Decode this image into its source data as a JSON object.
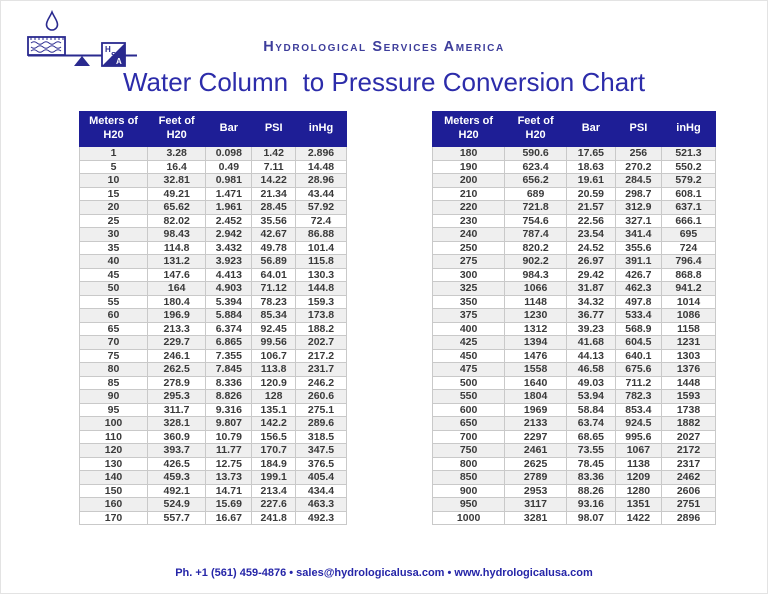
{
  "page": {
    "company_name": "Hydrological Services America",
    "title": "Water Column  to Pressure Conversion Chart",
    "footer_contact": "Ph. +1 (561) 459-4876 • sales@hydrologicalusa.com • www.hydrologicalusa.com"
  },
  "logo": {
    "description": "HSA logo: water droplet over a water tank on a balance beam with fulcrum and HSA monogram box",
    "monogram_letters": [
      "H",
      "S",
      "A"
    ],
    "color": "#2a2a8f"
  },
  "colors": {
    "table_header_bg": "#1e1e96",
    "table_header_text": "#ffffff",
    "title_text": "#2c2caa",
    "company_text": "#3d3d9b",
    "footer_text": "#2525a8",
    "row_stripe": "#efefef",
    "cell_border": "#c9c9c9",
    "body_text": "#3a3a3a"
  },
  "chart_data": {
    "type": "table",
    "title": "Water Column  to Pressure Conversion Chart",
    "tables": [
      {
        "name": "left-table",
        "columns": [
          "Meters of H20",
          "Feet of H20",
          "Bar",
          "PSI",
          "inHg"
        ],
        "rows": [
          [
            1,
            3.28,
            0.098,
            1.42,
            2.896
          ],
          [
            5,
            16.4,
            0.49,
            7.11,
            14.48
          ],
          [
            10,
            32.81,
            0.981,
            14.22,
            28.96
          ],
          [
            15,
            49.21,
            1.471,
            21.34,
            43.44
          ],
          [
            20,
            65.62,
            1.961,
            28.45,
            57.92
          ],
          [
            25,
            82.02,
            2.452,
            35.56,
            72.4
          ],
          [
            30,
            98.43,
            2.942,
            42.67,
            86.88
          ],
          [
            35,
            114.8,
            3.432,
            49.78,
            101.4
          ],
          [
            40,
            131.2,
            3.923,
            56.89,
            115.8
          ],
          [
            45,
            147.6,
            4.413,
            64.01,
            130.3
          ],
          [
            50,
            164,
            4.903,
            71.12,
            144.8
          ],
          [
            55,
            180.4,
            5.394,
            78.23,
            159.3
          ],
          [
            60,
            196.9,
            5.884,
            85.34,
            173.8
          ],
          [
            65,
            213.3,
            6.374,
            92.45,
            188.2
          ],
          [
            70,
            229.7,
            6.865,
            99.56,
            202.7
          ],
          [
            75,
            246.1,
            7.355,
            106.7,
            217.2
          ],
          [
            80,
            262.5,
            7.845,
            113.8,
            231.7
          ],
          [
            85,
            278.9,
            8.336,
            120.9,
            246.2
          ],
          [
            90,
            295.3,
            8.826,
            128,
            260.6
          ],
          [
            95,
            311.7,
            9.316,
            135.1,
            275.1
          ],
          [
            100,
            328.1,
            9.807,
            142.2,
            289.6
          ],
          [
            110,
            360.9,
            10.79,
            156.5,
            318.5
          ],
          [
            120,
            393.7,
            11.77,
            170.7,
            347.5
          ],
          [
            130,
            426.5,
            12.75,
            184.9,
            376.5
          ],
          [
            140,
            459.3,
            13.73,
            199.1,
            405.4
          ],
          [
            150,
            492.1,
            14.71,
            213.4,
            434.4
          ],
          [
            160,
            524.9,
            15.69,
            227.6,
            463.3
          ],
          [
            170,
            557.7,
            16.67,
            241.8,
            492.3
          ]
        ]
      },
      {
        "name": "right-table",
        "columns": [
          "Meters of H20",
          "Feet of H20",
          "Bar",
          "PSI",
          "inHg"
        ],
        "rows": [
          [
            180,
            590.6,
            17.65,
            256,
            521.3
          ],
          [
            190,
            623.4,
            18.63,
            270.2,
            550.2
          ],
          [
            200,
            656.2,
            19.61,
            284.5,
            579.2
          ],
          [
            210,
            689,
            20.59,
            298.7,
            608.1
          ],
          [
            220,
            721.8,
            21.57,
            312.9,
            637.1
          ],
          [
            230,
            754.6,
            22.56,
            327.1,
            666.1
          ],
          [
            240,
            787.4,
            23.54,
            341.4,
            695
          ],
          [
            250,
            820.2,
            24.52,
            355.6,
            724
          ],
          [
            275,
            902.2,
            26.97,
            391.1,
            796.4
          ],
          [
            300,
            984.3,
            29.42,
            426.7,
            868.8
          ],
          [
            325,
            1066,
            31.87,
            462.3,
            941.2
          ],
          [
            350,
            1148,
            34.32,
            497.8,
            1014
          ],
          [
            375,
            1230,
            36.77,
            533.4,
            1086
          ],
          [
            400,
            1312,
            39.23,
            568.9,
            1158
          ],
          [
            425,
            1394,
            41.68,
            604.5,
            1231
          ],
          [
            450,
            1476,
            44.13,
            640.1,
            1303
          ],
          [
            475,
            1558,
            46.58,
            675.6,
            1376
          ],
          [
            500,
            1640,
            49.03,
            711.2,
            1448
          ],
          [
            550,
            1804,
            53.94,
            782.3,
            1593
          ],
          [
            600,
            1969,
            58.84,
            853.4,
            1738
          ],
          [
            650,
            2133,
            63.74,
            924.5,
            1882
          ],
          [
            700,
            2297,
            68.65,
            995.6,
            2027
          ],
          [
            750,
            2461,
            73.55,
            1067,
            2172
          ],
          [
            800,
            2625,
            78.45,
            1138,
            2317
          ],
          [
            850,
            2789,
            83.36,
            1209,
            2462
          ],
          [
            900,
            2953,
            88.26,
            1280,
            2606
          ],
          [
            950,
            3117,
            93.16,
            1351,
            2751
          ],
          [
            1000,
            3281,
            98.07,
            1422,
            2896
          ]
        ]
      }
    ]
  }
}
